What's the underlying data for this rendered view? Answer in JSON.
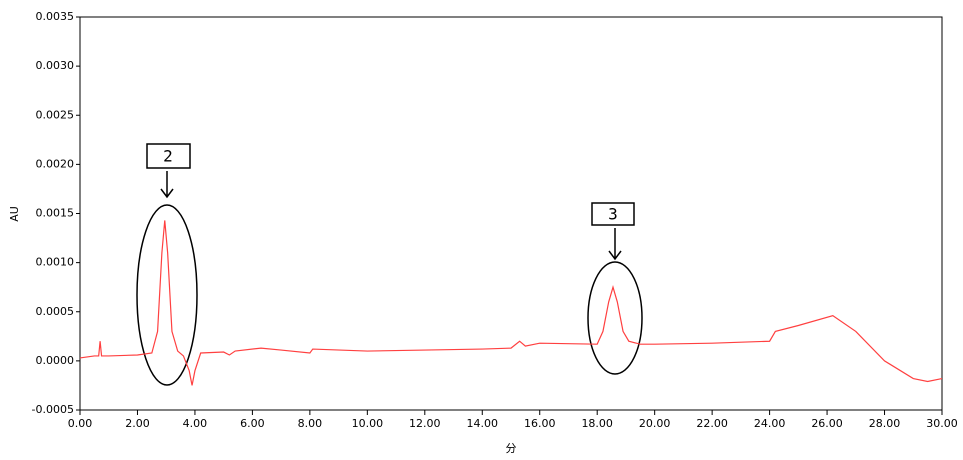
{
  "chart_data": {
    "type": "line",
    "x_label": "分",
    "y_label": "AU",
    "color": "#ff4040",
    "x": [
      0,
      0.5,
      0.65,
      0.7,
      0.75,
      1.0,
      2.0,
      2.5,
      2.7,
      2.85,
      2.95,
      3.05,
      3.2,
      3.4,
      3.6,
      3.8,
      3.9,
      4.0,
      4.2,
      5.0,
      5.2,
      5.4,
      6.3,
      7.0,
      8.0,
      8.1,
      10,
      12,
      14,
      15.0,
      15.3,
      15.5,
      16,
      18,
      18.2,
      18.4,
      18.55,
      18.7,
      18.9,
      19.1,
      19.5,
      20,
      22,
      24,
      24.2,
      25,
      26.2,
      27,
      28,
      29,
      29.5,
      30
    ],
    "values": [
      3e-05,
      5e-05,
      5e-05,
      0.0002,
      5e-05,
      5e-05,
      6e-05,
      8e-05,
      0.0003,
      0.0011,
      0.00143,
      0.0011,
      0.0003,
      0.0001,
      5e-05,
      -0.0001,
      -0.00025,
      -0.0001,
      8e-05,
      9e-05,
      6e-05,
      0.0001,
      0.00013,
      0.00011,
      8e-05,
      0.00012,
      0.0001,
      0.00011,
      0.00012,
      0.00013,
      0.0002,
      0.00015,
      0.00018,
      0.00017,
      0.0003,
      0.0006,
      0.00075,
      0.0006,
      0.0003,
      0.0002,
      0.00017,
      0.00017,
      0.00018,
      0.0002,
      0.0003,
      0.00036,
      0.00046,
      0.0003,
      0.0,
      -0.00018,
      -0.00021,
      -0.00018
    ],
    "xlim": [
      0,
      30
    ],
    "ylim": [
      -0.0005,
      0.0035
    ],
    "xticks": [
      {
        "value": 0,
        "label": "0.00"
      },
      {
        "value": 2,
        "label": "2.00"
      },
      {
        "value": 4,
        "label": "4.00"
      },
      {
        "value": 6,
        "label": "6.00"
      },
      {
        "value": 8,
        "label": "8.00"
      },
      {
        "value": 10,
        "label": "10.00"
      },
      {
        "value": 12,
        "label": "12.00"
      },
      {
        "value": 14,
        "label": "14.00"
      },
      {
        "value": 16,
        "label": "16.00"
      },
      {
        "value": 18,
        "label": "18.00"
      },
      {
        "value": 20,
        "label": "20.00"
      },
      {
        "value": 22,
        "label": "22.00"
      },
      {
        "value": 24,
        "label": "24.00"
      },
      {
        "value": 26,
        "label": "26.00"
      },
      {
        "value": 28,
        "label": "28.00"
      },
      {
        "value": 30,
        "label": "30.00"
      }
    ],
    "yticks": [
      {
        "value": -0.0005,
        "label": "-0.0005"
      },
      {
        "value": 0,
        "label": "0.0000"
      },
      {
        "value": 0.0005,
        "label": "0.0005"
      },
      {
        "value": 0.001,
        "label": "0.0010"
      },
      {
        "value": 0.0015,
        "label": "0.0015"
      },
      {
        "value": 0.002,
        "label": "0.0020"
      },
      {
        "value": 0.0025,
        "label": "0.0025"
      },
      {
        "value": 0.003,
        "label": "0.0030"
      },
      {
        "value": 0.0035,
        "label": "0.0035"
      }
    ],
    "annotations": [
      "2",
      "3"
    ]
  }
}
